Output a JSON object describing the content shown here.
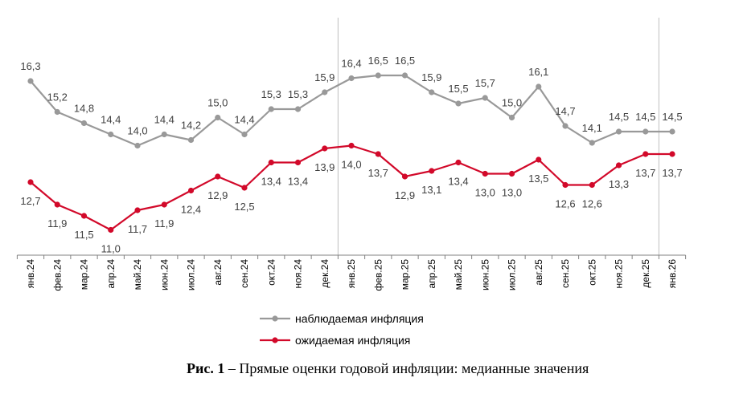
{
  "chart_data": {
    "type": "line",
    "x": [
      "янв.24",
      "фев.24",
      "мар.24",
      "апр.24",
      "май.24",
      "июн.24",
      "июл.24",
      "авг.24",
      "сен.24",
      "окт.24",
      "ноя.24",
      "дек.24",
      "янв.25",
      "фев.25",
      "мар.25",
      "апр.25",
      "май.25",
      "июн.25",
      "июл.25",
      "авг.25",
      "сен.25",
      "окт.25",
      "ноя.25",
      "дек.25",
      "янв.26"
    ],
    "series": [
      {
        "name": "наблюдаемая инфляция",
        "color": "#999999",
        "values": [
          16.3,
          15.2,
          14.8,
          14.4,
          14.0,
          14.4,
          14.2,
          15.0,
          14.4,
          15.3,
          15.3,
          15.9,
          16.4,
          16.5,
          16.5,
          15.9,
          15.5,
          15.7,
          15.0,
          16.1,
          14.7,
          14.1,
          14.5,
          14.5,
          14.5
        ],
        "labels": [
          "16,3",
          "15,2",
          "14,8",
          "14,4",
          "14,0",
          "14,4",
          "14,2",
          "15,0",
          "14,4",
          "15,3",
          "15,3",
          "15,9",
          "16,4",
          "16,5",
          "16,5",
          "15,9",
          "15,5",
          "15,7",
          "15,0",
          "16,1",
          "14,7",
          "14,1",
          "14,5",
          "14,5",
          "14,5"
        ]
      },
      {
        "name": "ожидаемая инфляция",
        "color": "#d2092a",
        "values": [
          12.7,
          11.9,
          11.5,
          11.0,
          11.7,
          11.9,
          12.4,
          12.9,
          12.5,
          13.4,
          13.4,
          13.9,
          14.0,
          13.7,
          12.9,
          13.1,
          13.4,
          13.0,
          13.0,
          13.5,
          12.6,
          12.6,
          13.3,
          13.7,
          13.7
        ],
        "labels": [
          "12,7",
          "11,9",
          "11,5",
          "11,0",
          "11,7",
          "11,9",
          "12,4",
          "12,9",
          "12,5",
          "13,4",
          "13,4",
          "13,9",
          "14,0",
          "13,7",
          "12,9",
          "13,1",
          "13,4",
          "13,0",
          "13,0",
          "13,5",
          "12,6",
          "12,6",
          "13,3",
          "13,7",
          "13,7"
        ]
      }
    ],
    "vertical_lines_at": [
      "янв.25",
      "янв.26"
    ],
    "legend_position": "bottom-center",
    "grid": false
  },
  "caption": {
    "bold": "Рис. 1",
    "rest": " – Прямые оценки годовой инфляции: медианные значения"
  }
}
